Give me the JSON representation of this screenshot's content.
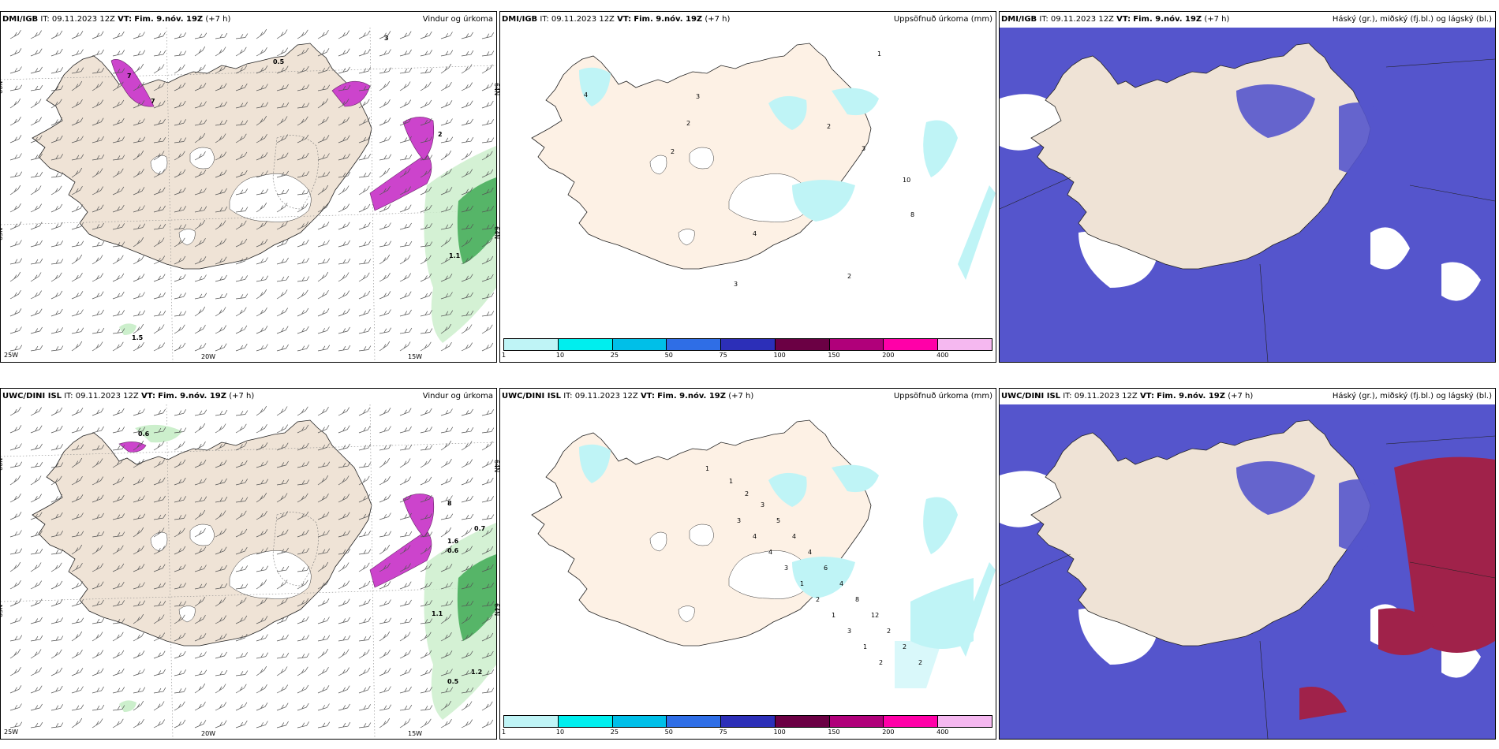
{
  "panels": [
    {
      "id": "p1",
      "source": "DMI/IGB",
      "it_label": "IT:",
      "it": "09.11.2023 12Z",
      "vt_label": "VT:",
      "vt": "Fim. 9.nóv. 19Z",
      "lead": "(+7 h)",
      "title": "Vindur og úrkoma",
      "kind": "wind",
      "labels": [
        "7",
        "7",
        "0.5",
        "3",
        "1.1",
        "1.5",
        "2"
      ],
      "lat_labels": [
        "66N",
        "65N",
        "64N",
        "64N"
      ],
      "lon_labels": [
        "25W",
        "20W",
        "15W"
      ]
    },
    {
      "id": "p2",
      "source": "DMI/IGB",
      "it_label": "IT:",
      "it": "09.11.2023 12Z",
      "vt_label": "VT:",
      "vt": "Fim. 9.nóv. 19Z",
      "lead": "(+7 h)",
      "title": "Uppsöfnuð úrkoma (mm)",
      "kind": "accum",
      "labels": [
        "4",
        "3",
        "2",
        "2",
        "2",
        "3",
        "10",
        "8",
        "4",
        "3",
        "2",
        "1"
      ]
    },
    {
      "id": "p3",
      "source": "DMI/IGB",
      "it_label": "IT:",
      "it": "09.11.2023 12Z",
      "vt_label": "VT:",
      "vt": "Fim. 9.nóv. 19Z",
      "lead": "(+7 h)",
      "title": "Háský (gr.), miðský (fj.bl.) og lágský (bl.)",
      "kind": "cloud",
      "labels": []
    },
    {
      "id": "p4",
      "source": "UWC/DINI ISL",
      "it_label": "IT:",
      "it": "09.11.2023 12Z",
      "vt_label": "VT:",
      "vt": "Fim. 9.nóv. 19Z",
      "lead": "(+7 h)",
      "title": "Vindur og úrkoma",
      "kind": "wind",
      "labels": [
        "0.6",
        "8",
        "0.7",
        "1.6",
        "0.6",
        "1.1",
        "0.5",
        "1.2"
      ],
      "lat_labels": [
        "66N",
        "65N",
        "64N",
        "64N"
      ],
      "lon_labels": [
        "25W",
        "20W",
        "15W"
      ]
    },
    {
      "id": "p5",
      "source": "UWC/DINI ISL",
      "it_label": "IT:",
      "it": "09.11.2023 12Z",
      "vt_label": "VT:",
      "vt": "Fim. 9.nóv. 19Z",
      "lead": "(+7 h)",
      "title": "Uppsöfnuð úrkoma (mm)",
      "kind": "accum",
      "labels": [
        "1",
        "1",
        "2",
        "3",
        "5",
        "4",
        "4",
        "6",
        "4",
        "8",
        "12",
        "2",
        "2",
        "2",
        "3",
        "4",
        "4",
        "3",
        "1",
        "2",
        "1",
        "3",
        "1",
        "2"
      ]
    },
    {
      "id": "p6",
      "source": "UWC/DINI ISL",
      "it_label": "IT:",
      "it": "09.11.2023 12Z",
      "vt_label": "VT:",
      "vt": "Fim. 9.nóv. 19Z",
      "lead": "(+7 h)",
      "title": "Háský (gr.), miðský (fj.bl.) og lágský (bl.)",
      "kind": "cloud",
      "labels": []
    }
  ],
  "colorbar": {
    "labels": [
      "1",
      "10",
      "25",
      "50",
      "75",
      "100",
      "150",
      "200",
      "400"
    ],
    "colors": [
      "#bff4f6",
      "#00eeee",
      "#00bfe8",
      "#2f6ee6",
      "#2c2fb8",
      "#6b0044",
      "#b0007a",
      "#ff00a8",
      "#f5b8f0"
    ]
  },
  "colors": {
    "land": "#efe3d6",
    "land_accum": "#fdf1e5",
    "snow": "#ffffff",
    "precip_low": "#ccefcc",
    "precip_mid": "#3faa55",
    "precip_high": "#cc44cc",
    "accum": "#bff4f6",
    "cloud_high": "#5555cc",
    "cloud_low": "#3366ee",
    "cloud_red": "#a0224a"
  }
}
